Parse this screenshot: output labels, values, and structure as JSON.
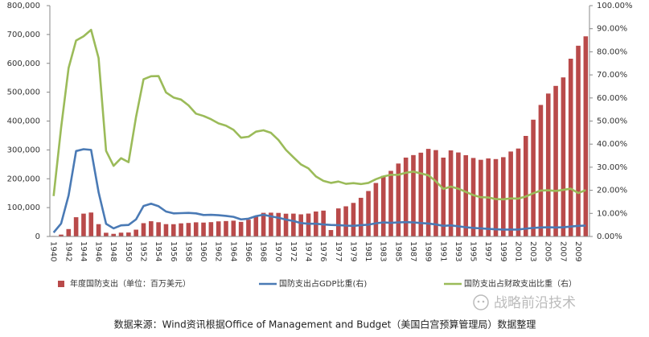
{
  "chart_data": {
    "type": "bar",
    "categories": [
      "1940",
      null,
      "1942",
      null,
      "1944",
      null,
      "1946",
      null,
      "1948",
      null,
      "1950",
      null,
      "1952",
      null,
      "1954",
      null,
      "1956",
      null,
      "1958",
      null,
      "1960",
      null,
      "1962",
      null,
      "1964",
      null,
      "1966",
      null,
      "1968",
      null,
      "1970",
      null,
      "1972",
      null,
      "1974",
      null,
      "1976",
      null,
      "1977",
      null,
      "1979",
      null,
      "1981",
      null,
      "1983",
      null,
      "1985",
      null,
      "1987",
      null,
      "1989",
      null,
      "1991",
      null,
      "1993",
      null,
      "1995",
      null,
      "1997",
      null,
      "1999",
      null,
      "2001",
      null,
      "2003",
      null,
      "2005",
      null,
      "2007",
      null,
      "2009",
      null
    ],
    "series": [
      {
        "name": "年度国防支出（单位：百万美元）",
        "type": "bar",
        "color": "#b94a4a",
        "values": [
          1660,
          6435,
          25658,
          66699,
          79143,
          82965,
          42681,
          12808,
          9105,
          13150,
          13724,
          23566,
          46089,
          52802,
          49266,
          42729,
          42523,
          45430,
          46815,
          49015,
          48130,
          49601,
          52345,
          53400,
          54757,
          50620,
          58111,
          71417,
          81926,
          82497,
          81692,
          78872,
          79174,
          76681,
          79347,
          86509,
          89619,
          22269,
          97241,
          104495,
          116342,
          133995,
          157513,
          185309,
          209903,
          227411,
          252743,
          273375,
          281999,
          290361,
          303559,
          299331,
          273292,
          298350,
          291086,
          281642,
          272063,
          265748,
          270502,
          268194,
          274769,
          294363,
          304732,
          348456,
          404744,
          455833,
          495308,
          521827,
          551271,
          616073,
          661049,
          693586
        ]
      },
      {
        "name": "国防支出占GDP比重(右)",
        "type": "line",
        "axis": "y2",
        "color": "#4a7ab5",
        "values": [
          1.7,
          5.6,
          17.8,
          37.0,
          37.8,
          37.5,
          19.2,
          5.5,
          3.5,
          4.8,
          5.0,
          7.4,
          13.2,
          14.2,
          13.1,
          10.8,
          10.0,
          10.1,
          10.2,
          10.0,
          9.3,
          9.4,
          9.2,
          8.9,
          8.5,
          7.4,
          7.7,
          8.8,
          9.4,
          8.7,
          8.1,
          7.3,
          6.7,
          5.8,
          5.5,
          5.5,
          5.2,
          5.0,
          4.9,
          4.7,
          4.6,
          4.9,
          5.1,
          5.7,
          6.1,
          5.9,
          6.1,
          6.2,
          6.1,
          5.8,
          5.6,
          5.2,
          4.6,
          4.8,
          4.4,
          4.0,
          3.7,
          3.5,
          3.3,
          3.1,
          3.0,
          3.0,
          3.0,
          3.4,
          3.7,
          3.9,
          4.0,
          3.9,
          4.0,
          4.3,
          4.6,
          4.7
        ]
      },
      {
        "name": "国防支出占财政支出比重（右）",
        "type": "line",
        "axis": "y2",
        "color": "#9bbb59",
        "values": [
          17.5,
          47.1,
          73.0,
          84.9,
          86.7,
          89.5,
          77.3,
          37.1,
          30.6,
          33.9,
          32.2,
          51.8,
          68.1,
          69.4,
          69.5,
          62.4,
          60.2,
          59.3,
          56.8,
          53.2,
          52.2,
          50.8,
          49.0,
          48.0,
          46.2,
          42.8,
          43.2,
          45.4,
          46.0,
          44.9,
          41.8,
          37.5,
          34.3,
          31.2,
          29.5,
          26.0,
          24.1,
          23.2,
          23.8,
          22.8,
          23.1,
          22.7,
          23.2,
          24.8,
          26.0,
          26.7,
          26.7,
          27.6,
          28.1,
          27.3,
          26.5,
          23.9,
          20.6,
          21.6,
          20.7,
          19.3,
          17.9,
          17.0,
          16.9,
          16.2,
          16.1,
          16.5,
          16.4,
          17.3,
          18.7,
          19.9,
          20.0,
          19.7,
          20.2,
          20.7,
          18.8,
          20.1
        ]
      }
    ],
    "ylim": [
      0,
      800000
    ],
    "yticks": [
      0,
      {
        "value": 100000,
        "label": "100,000"
      },
      {
        "value": 200000,
        "label": "200,000"
      },
      {
        "value": 300000,
        "label": "300,000"
      },
      {
        "value": 400000,
        "label": "400,000"
      },
      {
        "value": 500000,
        "label": "500,000"
      },
      {
        "value": 600000,
        "label": "600,000"
      },
      {
        "value": 700000,
        "label": "700,000"
      },
      {
        "value": 800000,
        "label": "800,000"
      }
    ],
    "y2lim": [
      0,
      100
    ],
    "y2ticks": [
      {
        "value": 0,
        "label": "0.00%"
      },
      {
        "value": 10,
        "label": "10.00%"
      },
      {
        "value": 20,
        "label": "20.00%"
      },
      {
        "value": 30,
        "label": "30.00%"
      },
      {
        "value": 40,
        "label": "40.00%"
      },
      {
        "value": 50,
        "label": "50.00%"
      },
      {
        "value": 60,
        "label": "60.00%"
      },
      {
        "value": 70,
        "label": "70.00%"
      },
      {
        "value": 80,
        "label": "80.00%"
      },
      {
        "value": 90,
        "label": "90.00%"
      },
      {
        "value": 100,
        "label": "100.00%"
      }
    ],
    "source": "数据来源：Wind资讯根据Office of Management and Budget（美国白宫预算管理局）数据整理",
    "watermark": "战略前沿技术"
  }
}
